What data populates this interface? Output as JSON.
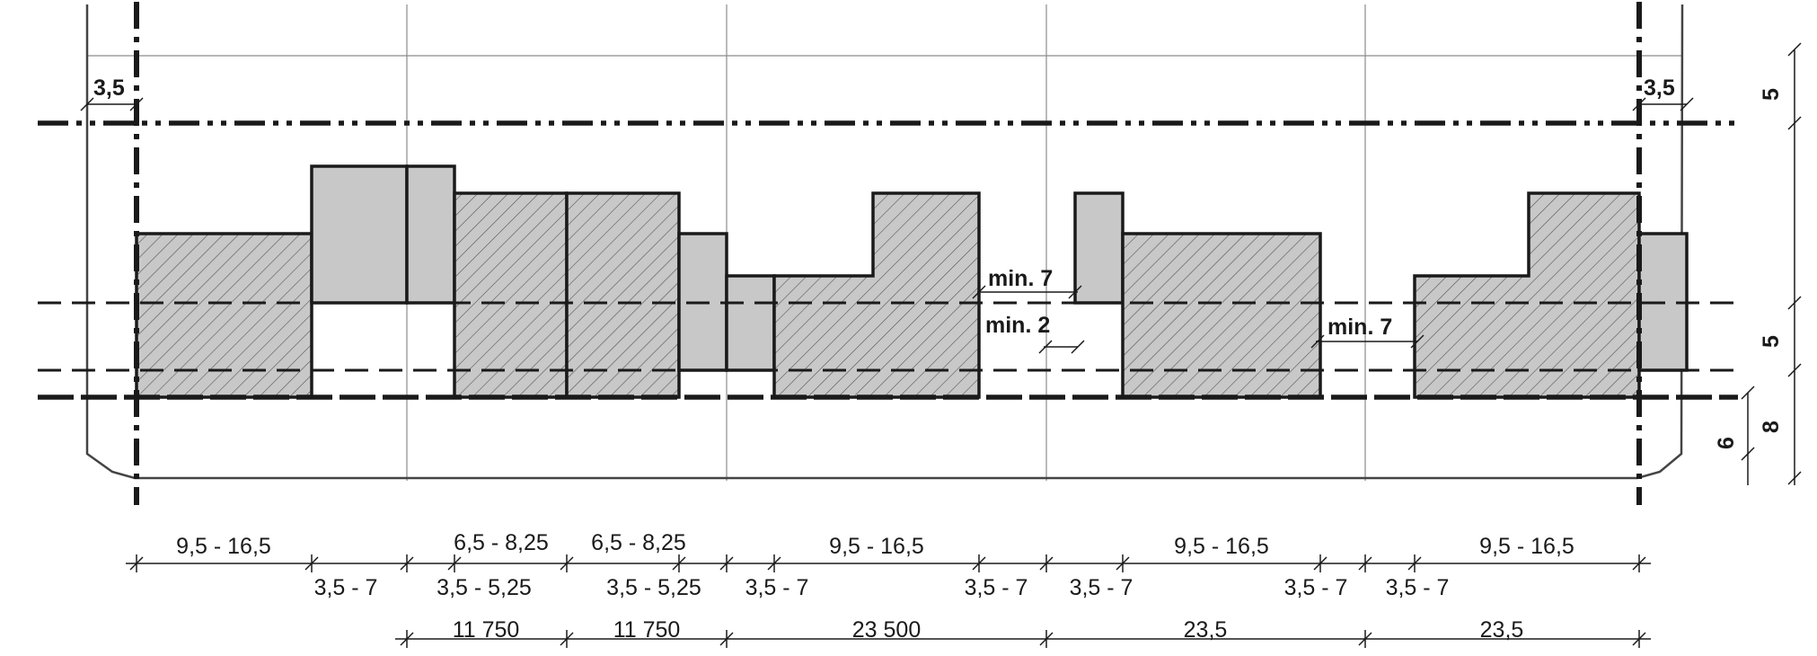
{
  "colors": {
    "line": "#1a1a1a",
    "grid": "#8c8c8c",
    "fill": "#c8c8c8",
    "hatch": "#555555",
    "background": "#ffffff"
  },
  "top_labels": {
    "offset_left": "3,5",
    "offset_right": "3,5"
  },
  "side_labels": {
    "top": "5",
    "middle": "5",
    "bottom_outer": "8",
    "bottom_inner": "6"
  },
  "annotations": {
    "min7_a": "min. 7",
    "min2": "min. 2",
    "min7_b": "min. 7"
  },
  "row1": [
    "9,5 - 16,5",
    "6,5 - 8,25",
    "6,5 - 8,25",
    "9,5 - 16,5",
    "9,5 - 16,5",
    "9,5 - 16,5"
  ],
  "row2": [
    "3,5 - 7",
    "3,5 - 5,25",
    "3,5 - 5,25",
    "3,5 - 7",
    "3,5 - 7",
    "3,5 - 7",
    "3,5 - 7",
    "3,5 - 7"
  ],
  "row3": [
    "11 750",
    "11 750",
    "23 500",
    "23,5",
    "23,5"
  ]
}
